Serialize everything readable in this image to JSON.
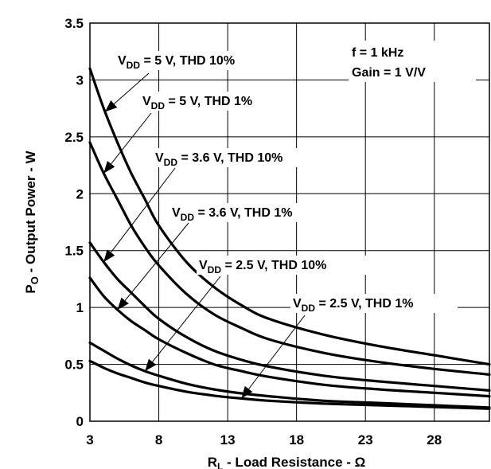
{
  "chart_data": {
    "type": "line",
    "xlabel": "R",
    "xlabel_sub": "L",
    "xlabel_rest": " - Load Resistance - Ω",
    "ylabel": "P",
    "ylabel_sub": "O",
    "ylabel_rest": " - Output Power - W",
    "xlim": [
      3,
      32
    ],
    "ylim": [
      0,
      3.5
    ],
    "xticks": [
      3,
      8,
      13,
      18,
      23,
      28
    ],
    "xtick_labels": [
      "3",
      "8",
      "13",
      "18",
      "23",
      "28"
    ],
    "yticks": [
      0,
      0.5,
      1,
      1.5,
      2,
      2.5,
      3,
      3.5
    ],
    "ytick_labels": [
      "0",
      "0.5",
      "1",
      "1.5",
      "2",
      "2.5",
      "3",
      "3.5"
    ],
    "grid": true,
    "conditions": {
      "line1": "f = 1 kHz",
      "line2": "Gain = 1 V/V"
    },
    "series": [
      {
        "name": "VDD = 5 V, THD 10%",
        "prefix": "V",
        "sub": "DD",
        "rest": " = 5 V, THD 10%",
        "x": [
          3,
          4,
          5,
          6,
          7,
          8,
          10,
          12,
          14,
          16,
          20,
          24,
          28,
          32
        ],
        "y": [
          3.1,
          2.75,
          2.45,
          2.18,
          1.95,
          1.72,
          1.4,
          1.18,
          1.02,
          0.9,
          0.76,
          0.66,
          0.58,
          0.5
        ]
      },
      {
        "name": "VDD = 5 V, THD 1%",
        "prefix": "V",
        "sub": "DD",
        "rest": " = 5 V, THD 1%",
        "x": [
          3,
          4,
          5,
          6,
          7,
          8,
          10,
          12,
          14,
          16,
          20,
          24,
          28,
          32
        ],
        "y": [
          2.45,
          2.18,
          1.95,
          1.72,
          1.53,
          1.37,
          1.12,
          0.94,
          0.82,
          0.72,
          0.6,
          0.52,
          0.46,
          0.41
        ]
      },
      {
        "name": "VDD = 3.6 V, THD 10%",
        "prefix": "V",
        "sub": "DD",
        "rest": " = 3.6 V, THD 10%",
        "x": [
          3,
          4,
          5,
          6,
          7,
          8,
          10,
          12,
          14,
          16,
          20,
          24,
          28,
          32
        ],
        "y": [
          1.57,
          1.4,
          1.25,
          1.13,
          1.01,
          0.9,
          0.74,
          0.62,
          0.54,
          0.48,
          0.4,
          0.35,
          0.31,
          0.27
        ]
      },
      {
        "name": "VDD = 3.6 V, THD 1%",
        "prefix": "V",
        "sub": "DD",
        "rest": " = 3.6 V, THD 1%",
        "x": [
          3,
          4,
          5,
          6,
          7,
          8,
          10,
          12,
          14,
          16,
          20,
          24,
          28,
          32
        ],
        "y": [
          1.26,
          1.1,
          0.98,
          0.88,
          0.8,
          0.72,
          0.6,
          0.5,
          0.44,
          0.39,
          0.32,
          0.28,
          0.25,
          0.22
        ]
      },
      {
        "name": "VDD = 2.5 V, THD 10%",
        "prefix": "V",
        "sub": "DD",
        "rest": " = 2.5 V, THD 10%",
        "x": [
          3,
          4,
          5,
          6,
          7,
          8,
          10,
          12,
          14,
          16,
          20,
          24,
          28,
          32
        ],
        "y": [
          0.69,
          0.62,
          0.55,
          0.49,
          0.44,
          0.4,
          0.33,
          0.28,
          0.245,
          0.22,
          0.18,
          0.16,
          0.14,
          0.12
        ]
      },
      {
        "name": "VDD = 2.5 V, THD 1%",
        "prefix": "V",
        "sub": "DD",
        "rest": " = 2.5 V, THD 1%",
        "x": [
          3,
          4,
          5,
          6,
          7,
          8,
          10,
          12,
          14,
          16,
          20,
          24,
          28,
          32
        ],
        "y": [
          0.53,
          0.47,
          0.42,
          0.38,
          0.34,
          0.31,
          0.26,
          0.225,
          0.2,
          0.18,
          0.155,
          0.14,
          0.125,
          0.11
        ]
      }
    ]
  }
}
